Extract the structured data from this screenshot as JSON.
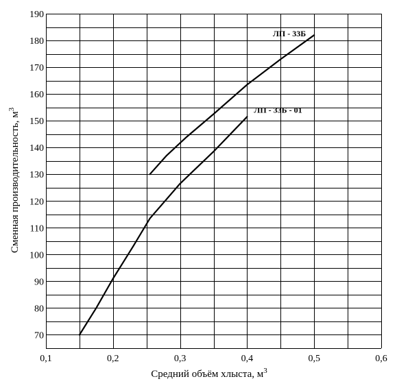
{
  "chart_data": {
    "type": "line",
    "title": "",
    "xlabel": "Средний объём хлыста, м",
    "xlabel_sup": "3",
    "ylabel": "Сменная  производительность, м",
    "ylabel_sup": "3",
    "xlim": [
      0.1,
      0.6
    ],
    "ylim": [
      65,
      190
    ],
    "x_ticks": [
      {
        "value": 0.1,
        "label": "0,1"
      },
      {
        "value": 0.2,
        "label": "0,2"
      },
      {
        "value": 0.3,
        "label": "0,3"
      },
      {
        "value": 0.4,
        "label": "0,4"
      },
      {
        "value": 0.5,
        "label": "0,5"
      },
      {
        "value": 0.6,
        "label": "0,6"
      }
    ],
    "y_ticks": [
      {
        "value": 70,
        "label": "70"
      },
      {
        "value": 80,
        "label": "80"
      },
      {
        "value": 90,
        "label": "90"
      },
      {
        "value": 100,
        "label": "100"
      },
      {
        "value": 110,
        "label": "110"
      },
      {
        "value": 120,
        "label": "120"
      },
      {
        "value": 130,
        "label": "130"
      },
      {
        "value": 140,
        "label": "140"
      },
      {
        "value": 150,
        "label": "150"
      },
      {
        "value": 160,
        "label": "160"
      },
      {
        "value": 170,
        "label": "170"
      },
      {
        "value": 180,
        "label": "180"
      },
      {
        "value": 190,
        "label": "190"
      }
    ],
    "grid": true,
    "minor_grid_x": [
      0.15,
      0.25,
      0.35,
      0.45,
      0.55
    ],
    "minor_grid_y": [
      75,
      85,
      95,
      105,
      115,
      125,
      135,
      145,
      155,
      165,
      175,
      185
    ],
    "series": [
      {
        "name": "ЛП - 33Б",
        "points": [
          [
            0.255,
            130
          ],
          [
            0.28,
            137
          ],
          [
            0.31,
            144
          ],
          [
            0.35,
            152.5
          ],
          [
            0.4,
            163.5
          ],
          [
            0.45,
            173
          ],
          [
            0.5,
            182
          ]
        ]
      },
      {
        "name": "ЛП - 33Б - 01",
        "points": [
          [
            0.15,
            70
          ],
          [
            0.175,
            80
          ],
          [
            0.2,
            91
          ],
          [
            0.23,
            103
          ],
          [
            0.255,
            113.5
          ],
          [
            0.3,
            126.5
          ],
          [
            0.35,
            138.5
          ],
          [
            0.4,
            151.5
          ]
        ]
      }
    ]
  }
}
